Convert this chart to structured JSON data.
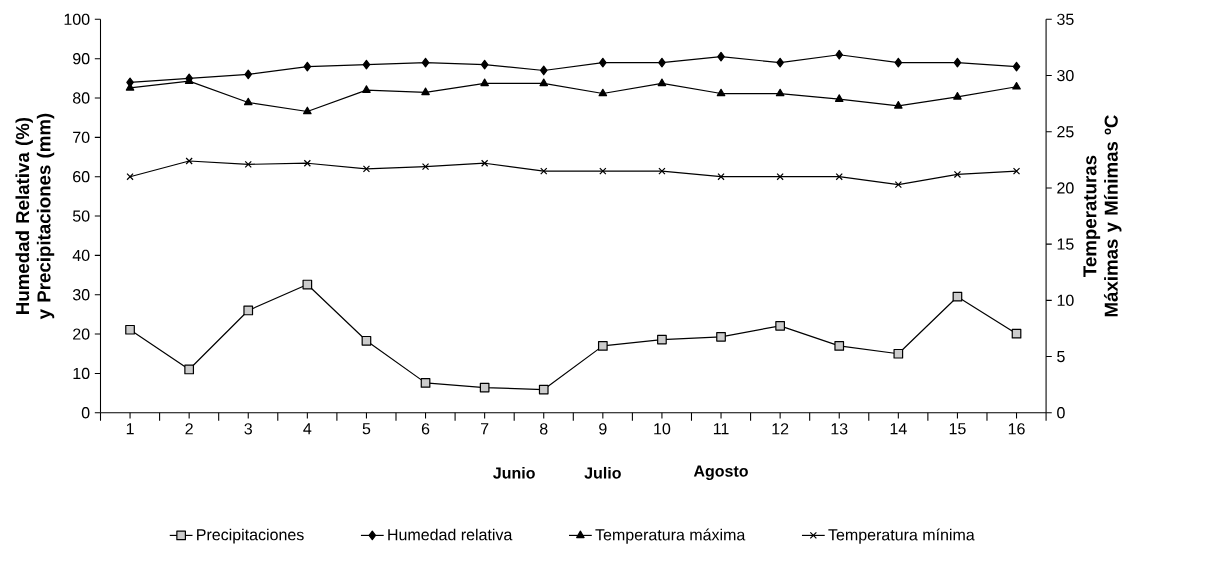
{
  "chart_data": {
    "type": "line",
    "categories": [
      "1",
      "2",
      "3",
      "4",
      "5",
      "6",
      "7",
      "8",
      "9",
      "10",
      "11",
      "12",
      "13",
      "14",
      "15",
      "16"
    ],
    "ylabel": "Humedad Relativa (%) y Precipitaciones (mm)",
    "y2label": "Temperaturas Máximas y Mínimas ºC",
    "ylim": [
      0,
      100
    ],
    "yticks": [
      0,
      10,
      20,
      30,
      40,
      50,
      60,
      70,
      80,
      90,
      100
    ],
    "y2lim": [
      0,
      35
    ],
    "y2ticks": [
      0,
      5,
      10,
      15,
      20,
      25,
      30,
      35
    ],
    "annotations": [
      "Junio",
      "Julio",
      "Agosto"
    ],
    "grid": false,
    "legend": "bottom",
    "series": [
      {
        "name": "Precipitaciones",
        "color": "#000000",
        "marker": "square",
        "values": [
          21.1,
          11,
          26,
          32.6,
          18.3,
          7.6,
          6.4,
          5.9,
          17,
          18.6,
          19.3,
          22.1,
          17,
          15,
          29.5,
          20.1
        ]
      },
      {
        "name": "Humedad relativa",
        "color": "#000000",
        "marker": "diamond",
        "values": [
          84,
          85,
          86,
          88,
          88.5,
          89,
          88.5,
          87,
          89,
          89,
          90.5,
          89,
          91,
          89,
          89,
          88
        ]
      },
      {
        "name": "Temperatura máxima",
        "color": "#000000",
        "marker": "triangle",
        "axis": "y2",
        "values": [
          28.9,
          29.5,
          27.6,
          26.8,
          28.7,
          28.5,
          29.3,
          29.3,
          28.4,
          29.3,
          28.4,
          28.4,
          27.9,
          27.3,
          28.1,
          29.0
        ]
      },
      {
        "name": "Temperatura mínima",
        "color": "#000000",
        "marker": "cross",
        "axis": "y2",
        "values": [
          21,
          22.4,
          22.1,
          22.2,
          21.7,
          21.9,
          22.2,
          21.5,
          21.5,
          21.5,
          21,
          21,
          21,
          20.3,
          21.2,
          21.5
        ]
      }
    ]
  }
}
